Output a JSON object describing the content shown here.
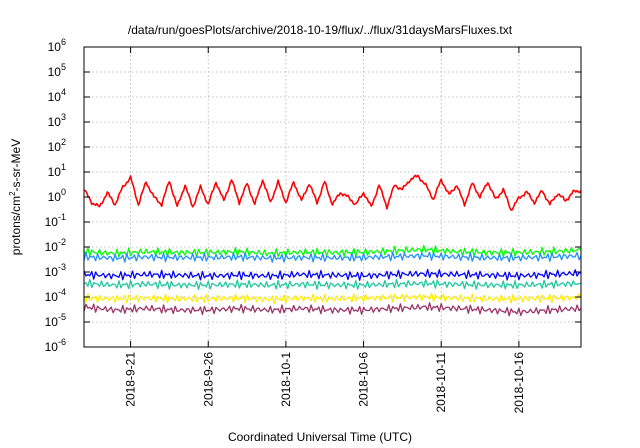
{
  "chart_data": {
    "type": "line",
    "title": "/data/run/goesPlots/archive/2018-10-19/flux/../flux/31daysMarsFluxes.txt",
    "xlabel": "Coordinated Universal Time (UTC)",
    "ylabel": {
      "main": "protons/cm",
      "sup": "2",
      "rest": "-s-sr-MeV"
    },
    "y_scale": "log",
    "x_range": [
      "2018-09-18",
      "2018-10-20"
    ],
    "ylim": [
      1e-06,
      1000000.0
    ],
    "grid": true,
    "legend": "none",
    "y_ticks": [
      {
        "value": 1e-06,
        "base": "10",
        "exp": "-6"
      },
      {
        "value": 1e-05,
        "base": "10",
        "exp": "-5"
      },
      {
        "value": 0.0001,
        "base": "10",
        "exp": "-4"
      },
      {
        "value": 0.001,
        "base": "10",
        "exp": "-3"
      },
      {
        "value": 0.01,
        "base": "10",
        "exp": "-2"
      },
      {
        "value": 0.1,
        "base": "10",
        "exp": "-1"
      },
      {
        "value": 1,
        "base": "10",
        "exp": "0"
      },
      {
        "value": 10,
        "base": "10",
        "exp": "1"
      },
      {
        "value": 100,
        "base": "10",
        "exp": "2"
      },
      {
        "value": 1000,
        "base": "10",
        "exp": "3"
      },
      {
        "value": 10000,
        "base": "10",
        "exp": "4"
      },
      {
        "value": 100000,
        "base": "10",
        "exp": "5"
      },
      {
        "value": 1000000,
        "base": "10",
        "exp": "6"
      }
    ],
    "x_ticks": [
      "2018-9-21",
      "2018-9-26",
      "2018-10-1",
      "2018-10-6",
      "2018-10-11",
      "2018-10-16"
    ],
    "x_tick_dates": [
      "2018-09-21",
      "2018-09-26",
      "2018-10-01",
      "2018-10-06",
      "2018-10-11",
      "2018-10-16"
    ],
    "series": [
      {
        "color": "#ff0000",
        "x": [
          "2018-09-18",
          "2018-09-18T12:00",
          "2018-09-19",
          "2018-09-19T12:00",
          "2018-09-20",
          "2018-09-20T12:00",
          "2018-09-21",
          "2018-09-21T12:00",
          "2018-09-22",
          "2018-09-22T12:00",
          "2018-09-23",
          "2018-09-23T12:00",
          "2018-09-24",
          "2018-09-24T12:00",
          "2018-09-25",
          "2018-09-25T12:00",
          "2018-09-26",
          "2018-09-26T12:00",
          "2018-09-27",
          "2018-09-27T12:00",
          "2018-09-28",
          "2018-09-28T12:00",
          "2018-09-29",
          "2018-09-29T12:00",
          "2018-09-30",
          "2018-09-30T12:00",
          "2018-10-01",
          "2018-10-01T12:00",
          "2018-10-02",
          "2018-10-02T12:00",
          "2018-10-03",
          "2018-10-03T12:00",
          "2018-10-04",
          "2018-10-04T12:00",
          "2018-10-05",
          "2018-10-05T12:00",
          "2018-10-06",
          "2018-10-06T12:00",
          "2018-10-07",
          "2018-10-07T12:00",
          "2018-10-08",
          "2018-10-08T12:00",
          "2018-10-09",
          "2018-10-09T12:00",
          "2018-10-10",
          "2018-10-10T12:00",
          "2018-10-11",
          "2018-10-11T12:00",
          "2018-10-12",
          "2018-10-12T12:00",
          "2018-10-13",
          "2018-10-13T12:00",
          "2018-10-14",
          "2018-10-14T12:00",
          "2018-10-15",
          "2018-10-15T12:00",
          "2018-10-16",
          "2018-10-16T12:00",
          "2018-10-17",
          "2018-10-17T12:00",
          "2018-10-18",
          "2018-10-18T12:00",
          "2018-10-19",
          "2018-10-19T12:00",
          "2018-10-20"
        ],
        "values": [
          2.0,
          0.6,
          0.4,
          1.5,
          0.5,
          2.5,
          6.0,
          0.5,
          4.0,
          1.0,
          0.5,
          4.5,
          0.4,
          3.0,
          0.4,
          2.5,
          0.5,
          4.0,
          0.7,
          5.0,
          0.6,
          3.5,
          0.5,
          5.0,
          0.6,
          4.0,
          0.6,
          4.0,
          0.7,
          3.5,
          0.6,
          4.0,
          0.5,
          1.5,
          1.0,
          0.5,
          1.5,
          0.4,
          3.0,
          0.4,
          3.0,
          2.0,
          5.0,
          7.0,
          3.0,
          0.8,
          5.0,
          1.2,
          3.0,
          0.5,
          3.5,
          1.0,
          4.0,
          0.8,
          2.0,
          0.3,
          0.9,
          1.6,
          0.6,
          1.8,
          0.5,
          1.4,
          0.7,
          1.6,
          1.8
        ]
      },
      {
        "color": "#00ff00",
        "x": [
          "2018-09-18",
          "2018-09-20",
          "2018-09-22",
          "2018-09-24",
          "2018-09-26",
          "2018-09-28",
          "2018-09-30",
          "2018-10-02",
          "2018-10-04",
          "2018-10-06",
          "2018-10-08",
          "2018-10-10",
          "2018-10-12",
          "2018-10-14",
          "2018-10-16",
          "2018-10-18",
          "2018-10-20"
        ],
        "values": [
          0.0065,
          0.0055,
          0.0065,
          0.006,
          0.006,
          0.0065,
          0.0055,
          0.0062,
          0.006,
          0.0062,
          0.007,
          0.008,
          0.0065,
          0.006,
          0.006,
          0.0065,
          0.0075
        ]
      },
      {
        "color": "#1e90ff",
        "x": [
          "2018-09-18",
          "2018-09-20",
          "2018-09-22",
          "2018-09-24",
          "2018-09-26",
          "2018-09-28",
          "2018-09-30",
          "2018-10-02",
          "2018-10-04",
          "2018-10-06",
          "2018-10-08",
          "2018-10-10",
          "2018-10-12",
          "2018-10-14",
          "2018-10-16",
          "2018-10-18",
          "2018-10-20"
        ],
        "values": [
          0.004,
          0.0036,
          0.004,
          0.0038,
          0.0038,
          0.004,
          0.0036,
          0.0038,
          0.0037,
          0.0038,
          0.0042,
          0.0045,
          0.004,
          0.0037,
          0.0037,
          0.004,
          0.0045
        ]
      },
      {
        "color": "#0000ff",
        "x": [
          "2018-09-18",
          "2018-09-20",
          "2018-09-22",
          "2018-09-24",
          "2018-09-26",
          "2018-09-28",
          "2018-09-30",
          "2018-10-02",
          "2018-10-04",
          "2018-10-06",
          "2018-10-08",
          "2018-10-10",
          "2018-10-12",
          "2018-10-14",
          "2018-10-16",
          "2018-10-18",
          "2018-10-20"
        ],
        "values": [
          0.0008,
          0.0007,
          0.0008,
          0.00075,
          0.0007,
          0.00075,
          0.0007,
          0.0008,
          0.00075,
          0.0007,
          0.0008,
          0.00085,
          0.0008,
          0.00075,
          0.0007,
          0.0008,
          0.0009
        ]
      },
      {
        "color": "#20c8a0",
        "x": [
          "2018-09-18",
          "2018-09-20",
          "2018-09-22",
          "2018-09-24",
          "2018-09-26",
          "2018-09-28",
          "2018-09-30",
          "2018-10-02",
          "2018-10-04",
          "2018-10-06",
          "2018-10-08",
          "2018-10-10",
          "2018-10-12",
          "2018-10-14",
          "2018-10-16",
          "2018-10-18",
          "2018-10-20"
        ],
        "values": [
          0.00035,
          0.0003,
          0.00033,
          0.0003,
          0.0003,
          0.00032,
          0.0003,
          0.00032,
          0.0003,
          0.0003,
          0.00033,
          0.00035,
          0.00032,
          0.0003,
          0.0003,
          0.00032,
          0.00035
        ]
      },
      {
        "color": "#ffee00",
        "x": [
          "2018-09-18",
          "2018-09-20",
          "2018-09-22",
          "2018-09-24",
          "2018-09-26",
          "2018-09-28",
          "2018-09-30",
          "2018-10-02",
          "2018-10-04",
          "2018-10-06",
          "2018-10-08",
          "2018-10-10",
          "2018-10-12",
          "2018-10-14",
          "2018-10-16",
          "2018-10-18",
          "2018-10-20"
        ],
        "values": [
          9e-05,
          8.5e-05,
          9e-05,
          8.5e-05,
          8.5e-05,
          9e-05,
          8e-05,
          9e-05,
          8.5e-05,
          9e-05,
          9.5e-05,
          0.0001,
          9e-05,
          8.5e-05,
          8.5e-05,
          9e-05,
          9.5e-05
        ]
      },
      {
        "color": "#993366",
        "x": [
          "2018-09-18",
          "2018-09-20",
          "2018-09-22",
          "2018-09-24",
          "2018-09-26",
          "2018-09-28",
          "2018-09-30",
          "2018-10-02",
          "2018-10-04",
          "2018-10-06",
          "2018-10-08",
          "2018-10-10",
          "2018-10-12",
          "2018-10-14",
          "2018-10-16",
          "2018-10-18",
          "2018-10-20"
        ],
        "values": [
          4e-05,
          3e-05,
          3.5e-05,
          3e-05,
          3e-05,
          3.5e-05,
          3e-05,
          3.5e-05,
          3e-05,
          3e-05,
          3.5e-05,
          4e-05,
          3.5e-05,
          3e-05,
          2.5e-05,
          3e-05,
          3.5e-05
        ]
      }
    ]
  }
}
